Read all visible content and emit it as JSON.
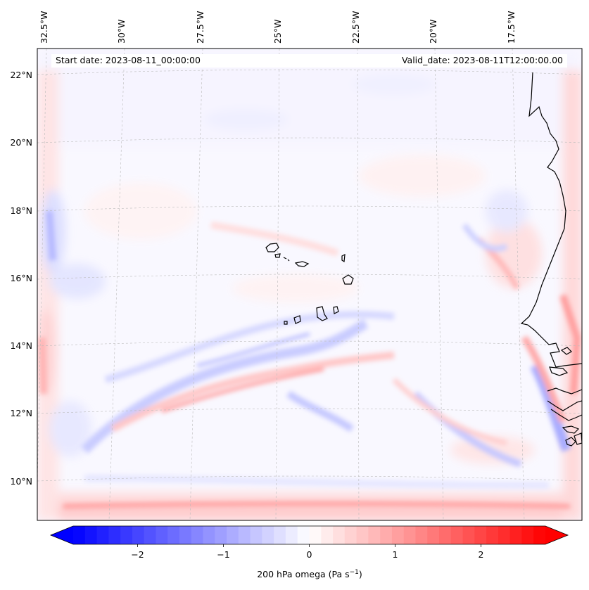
{
  "header": {
    "start_date": "Start date: 2023-08-11_00:00:00",
    "valid_date": "Valid_date: 2023-08-11T12:00:00.00"
  },
  "map": {
    "projection": "Lambert conformal",
    "longitude_labels": [
      "32.5°W",
      "30°W",
      "27.5°W",
      "25°W",
      "22.5°W",
      "20°W",
      "17.5°W"
    ],
    "latitude_labels": [
      "22°N",
      "20°N",
      "18°N",
      "16°N",
      "14°N",
      "12°N",
      "10°N"
    ],
    "gridlines": "dashed grey",
    "coastlines": "black",
    "features": [
      "Cape Verde islands",
      "West African coastline (Mauritania, Senegal, Gambia, Guinea-Bissau)"
    ]
  },
  "colorbar": {
    "ticks": [
      "−2",
      "−1",
      "0",
      "1",
      "2"
    ],
    "tick_values": [
      -2,
      -1,
      0,
      1,
      2
    ],
    "range": [
      -2.75,
      2.75
    ],
    "extend": "both",
    "colormap": "bwr",
    "color_min": "#0000ff",
    "color_mid": "#ffffff",
    "color_max": "#ff0000",
    "label": "200 hPa omega (Pa s",
    "label_superscript": "−1",
    "label_close": ")"
  }
}
